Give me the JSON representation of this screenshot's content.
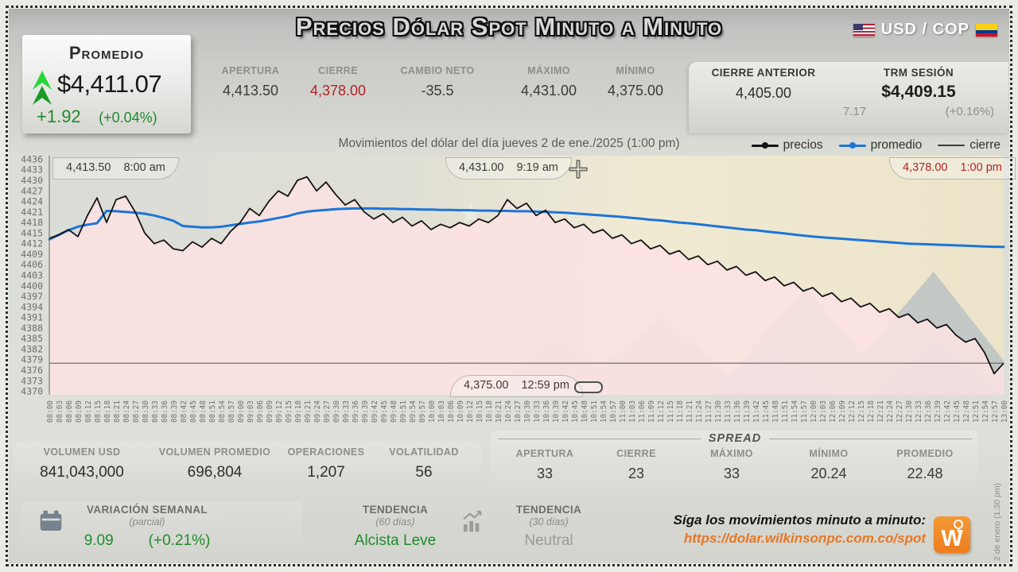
{
  "header": {
    "title": "Precios Dólar Spot Minuto a Minuto",
    "currency_pair": "USD / COP",
    "promedio_card": {
      "label": "Promedio",
      "value": "$4,411.07",
      "change": "+1.92",
      "change_pct": "(+0.04%)"
    },
    "stats": [
      {
        "label": "APERTURA",
        "value": "4,413.50",
        "tone": "dark"
      },
      {
        "label": "CIERRE",
        "value": "4,378.00",
        "tone": "red"
      },
      {
        "label": "CAMBIO NETO",
        "value": "-35.5",
        "tone": "dark"
      },
      {
        "label": "MÁXIMO",
        "value": "4,431.00",
        "tone": "dark"
      },
      {
        "label": "MÍNIMO",
        "value": "4,375.00",
        "tone": "dark"
      }
    ],
    "stats_right": [
      {
        "label": "CIERRE ANTERIOR",
        "value": "4,405.00"
      },
      {
        "label": "TRM SESIÓN",
        "value": "$4,409.15",
        "sub_change": "7.17",
        "sub_pct": "(+0.16%)"
      }
    ]
  },
  "chart_header": {
    "subtitle": "Movimientos del dólar del día jueves 2 de ene./2025 (1:00 pm)",
    "legend": [
      {
        "label": "precios",
        "color": "#141414",
        "dot": true,
        "thin": false
      },
      {
        "label": "promedio",
        "color": "#1c75d8",
        "dot": true,
        "thin": false
      },
      {
        "label": "cierre",
        "color": "#3a3a3a",
        "dot": false,
        "thin": true
      }
    ]
  },
  "chart_data": {
    "type": "line",
    "title": "Movimientos del dólar del día jueves 2 de ene./2025 (1:00 pm)",
    "xlabel": "",
    "ylabel": "",
    "grid": false,
    "legend_position": "top-right",
    "ylim": [
      4369,
      4437
    ],
    "area_fill": "#fbe2e2",
    "y_ticks": [
      4436,
      4433,
      4430,
      4427,
      4424,
      4421,
      4418,
      4415,
      4412,
      4409,
      4406,
      4403,
      4400,
      4397,
      4394,
      4391,
      4388,
      4385,
      4382,
      4379,
      4376,
      4373,
      4370
    ],
    "x_ticks": [
      "08:00",
      "08:03",
      "08:06",
      "08:09",
      "08:12",
      "08:15",
      "08:18",
      "08:21",
      "08:24",
      "08:27",
      "08:30",
      "08:33",
      "08:36",
      "08:39",
      "08:42",
      "08:45",
      "08:48",
      "08:51",
      "08:54",
      "08:57",
      "09:00",
      "09:03",
      "09:06",
      "09:09",
      "09:12",
      "09:15",
      "09:18",
      "09:21",
      "09:24",
      "09:27",
      "09:30",
      "09:33",
      "09:36",
      "09:39",
      "09:42",
      "09:45",
      "09:48",
      "09:51",
      "09:54",
      "09:57",
      "10:00",
      "10:03",
      "10:06",
      "10:09",
      "10:12",
      "10:15",
      "10:18",
      "10:21",
      "10:24",
      "10:27",
      "10:30",
      "10:33",
      "10:36",
      "10:39",
      "10:42",
      "10:45",
      "10:48",
      "10:51",
      "10:54",
      "10:57",
      "11:00",
      "11:03",
      "11:06",
      "11:09",
      "11:12",
      "11:15",
      "11:18",
      "11:21",
      "11:24",
      "11:27",
      "11:30",
      "11:33",
      "11:36",
      "11:39",
      "11:42",
      "11:45",
      "11:48",
      "11:51",
      "11:54",
      "11:57",
      "12:00",
      "12:03",
      "12:06",
      "12:09",
      "12:12",
      "12:15",
      "12:18",
      "12:21",
      "12:24",
      "12:27",
      "12:30",
      "12:33",
      "12:36",
      "12:39",
      "12:42",
      "12:45",
      "12:48",
      "12:51",
      "12:54",
      "12:57",
      "13:00"
    ],
    "series": [
      {
        "name": "precios",
        "color": "#141414",
        "values": [
          4413.5,
          4414.5,
          4416,
          4414,
          4420,
          4425,
          4418,
          4424.5,
          4425.5,
          4421,
          4415,
          4412,
          4413,
          4410.5,
          4410,
          4412.5,
          4411,
          4413.5,
          4412,
          4415.5,
          4418,
          4422,
          4420,
          4424,
          4427,
          4425.5,
          4430,
          4431,
          4427,
          4429.5,
          4426,
          4423,
          4424.5,
          4421,
          4419,
          4420.5,
          4418,
          4419.5,
          4417,
          4418.5,
          4416,
          4417.5,
          4416.5,
          4418,
          4417,
          4419,
          4418,
          4420,
          4424.5,
          4422,
          4423.5,
          4420,
          4421.5,
          4418,
          4419,
          4416.5,
          4417.5,
          4415,
          4416,
          4413.5,
          4414.5,
          4412,
          4413,
          4410.5,
          4411.5,
          4409,
          4410,
          4407.5,
          4408.5,
          4406,
          4407,
          4404.5,
          4405.5,
          4403,
          4404,
          4401.5,
          4402.5,
          4400,
          4401,
          4398.5,
          4399.5,
          4397,
          4398,
          4395.5,
          4396.5,
          4394,
          4395,
          4392.5,
          4393.5,
          4391,
          4392,
          4389.5,
          4390.5,
          4388,
          4389,
          4386,
          4384,
          4385,
          4381,
          4375,
          4378
        ]
      },
      {
        "name": "promedio",
        "color": "#1c75d8",
        "values": [
          4413.2,
          4414.5,
          4415.8,
          4416.8,
          4417.4,
          4417.8,
          4421.3,
          4421.2,
          4421,
          4420.8,
          4420.5,
          4420,
          4419.3,
          4418.5,
          4417,
          4416.8,
          4416.6,
          4416.6,
          4416.8,
          4417.2,
          4417.6,
          4418,
          4418.3,
          4418.8,
          4419.3,
          4419.8,
          4420.6,
          4421.1,
          4421.4,
          4421.6,
          4421.8,
          4421.9,
          4422,
          4422,
          4422,
          4421.9,
          4421.9,
          4421.8,
          4421.8,
          4421.7,
          4421.7,
          4421.6,
          4421.6,
          4421.5,
          4421.5,
          4421.4,
          4421.4,
          4421.3,
          4421.3,
          4421.2,
          4421.2,
          4421.1,
          4421,
          4420.9,
          4420.8,
          4420.6,
          4420.4,
          4420.2,
          4420,
          4419.8,
          4419.6,
          4419.3,
          4419.1,
          4418.8,
          4418.6,
          4418.3,
          4418,
          4417.8,
          4417.5,
          4417.2,
          4416.9,
          4416.6,
          4416.3,
          4416,
          4415.8,
          4415.5,
          4415.2,
          4414.9,
          4414.6,
          4414.3,
          4414,
          4413.8,
          4413.6,
          4413.4,
          4413.2,
          4413,
          4412.8,
          4412.6,
          4412.4,
          4412.2,
          4412,
          4411.9,
          4411.8,
          4411.7,
          4411.6,
          4411.5,
          4411.4,
          4411.3,
          4411.2,
          4411.1,
          4411.07
        ]
      },
      {
        "name": "cierre",
        "color": "#55504e",
        "constant": 4378
      }
    ],
    "annotations": [
      {
        "value": "4,413.50",
        "time": "8:00 am",
        "pos": "top-left",
        "tone": "dark"
      },
      {
        "value": "4,431.00",
        "time": "9:19 am",
        "pos": "top-center",
        "tone": "dark"
      },
      {
        "value": "4,378.00",
        "time": "1:00 pm",
        "pos": "top-right",
        "tone": "red"
      },
      {
        "value": "4,375.00",
        "time": "12:59 pm",
        "pos": "bottom-center",
        "tone": "dark"
      }
    ]
  },
  "bottom": {
    "volume_stats": [
      {
        "label": "VOLUMEN USD",
        "value": "841,043,000"
      },
      {
        "label": "VOLUMEN PROMEDIO",
        "value": "696,804"
      },
      {
        "label": "OPERACIONES",
        "value": "1,207"
      },
      {
        "label": "VOLATILIDAD",
        "value": "56"
      }
    ],
    "spread": {
      "title": "SPREAD",
      "stats": [
        {
          "label": "APERTURA",
          "value": "33"
        },
        {
          "label": "CIERRE",
          "value": "23"
        },
        {
          "label": "MÁXIMO",
          "value": "33"
        },
        {
          "label": "MÍNIMO",
          "value": "20.24"
        },
        {
          "label": "PROMEDIO",
          "value": "22.48"
        }
      ]
    }
  },
  "footer": {
    "variacion": {
      "label": "VARIACIÓN SEMANAL",
      "sub": "(parcial)",
      "value": "9.09",
      "pct": "(+0.21%)"
    },
    "tendencia_60": {
      "label": "TENDENCIA",
      "sub": "(60 días)",
      "value": "Alcista Leve"
    },
    "tendencia_30": {
      "label": "TENDENCIA",
      "sub": "(30 días)",
      "value": "Neutral"
    },
    "cta_text": "Síga los movimientos minuto a minuto:",
    "cta_url": "https://dolar.wilkinsonpc.com.co/spot",
    "logo_letter": "W"
  },
  "side_note": "2 de enero (1:30 pm)",
  "colors": {
    "green": "#1f8c2c",
    "red": "#b22325",
    "blue": "#1c75d8",
    "orange": "#e87722",
    "area_pink": "#fbe2e2"
  }
}
